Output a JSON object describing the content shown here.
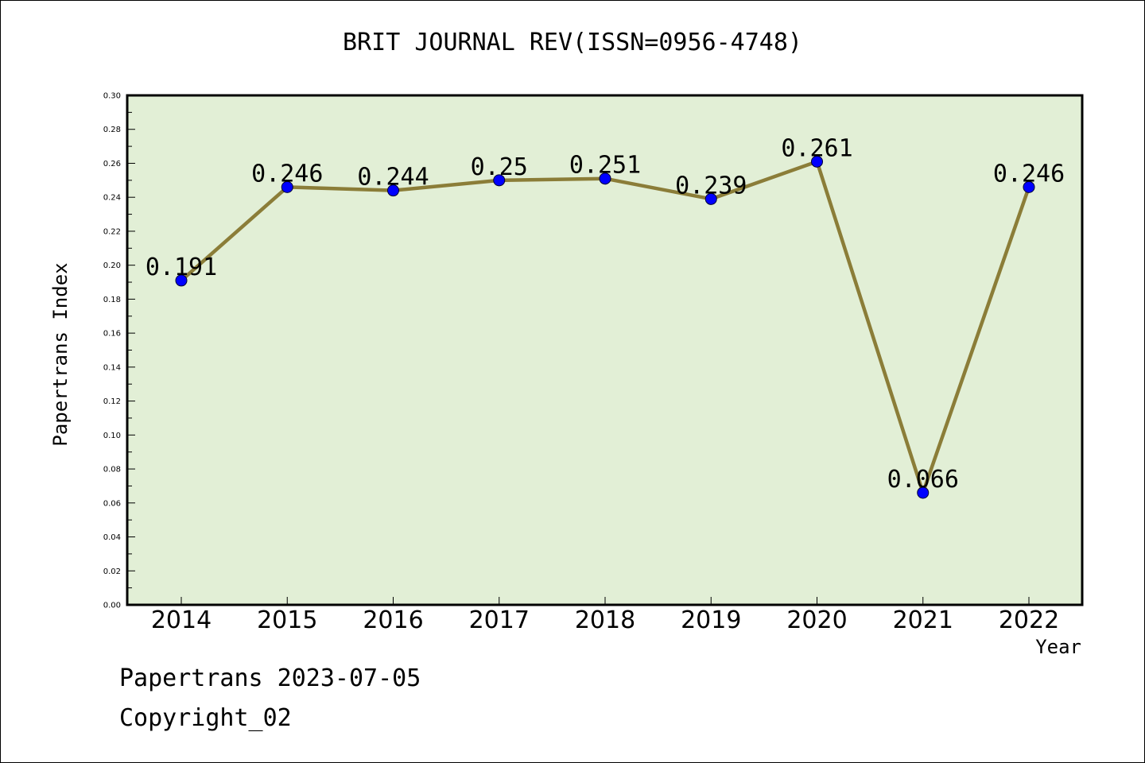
{
  "chart_data": {
    "type": "line",
    "title": "BRIT JOURNAL REV(ISSN=0956-4748)",
    "xlabel": "Year",
    "ylabel": "Papertrans Index",
    "categories": [
      "2014",
      "2015",
      "2016",
      "2017",
      "2018",
      "2019",
      "2020",
      "2021",
      "2022"
    ],
    "series": [
      {
        "values": [
          0.191,
          0.246,
          0.244,
          0.25,
          0.251,
          0.239,
          0.261,
          0.066,
          0.246
        ],
        "data_labels": [
          "0.191",
          "0.246",
          "0.244",
          "0.25",
          "0.251",
          "0.239",
          "0.261",
          "0.066",
          "0.246"
        ]
      }
    ],
    "ylim": [
      0,
      0.3
    ],
    "yticks": [
      "0.00",
      "0.02",
      "0.04",
      "0.06",
      "0.08",
      "0.10",
      "0.12",
      "0.14",
      "0.16",
      "0.18",
      "0.20",
      "0.22",
      "0.24",
      "0.26",
      "0.28",
      "0.30"
    ],
    "grid": false,
    "legend": "none",
    "colors": {
      "plot_background": "#e2efd6",
      "line": "#8b7d38",
      "marker": "#0000ff"
    }
  },
  "footer": {
    "date_text": "Papertrans 2023-07-05",
    "copyright_text": "Copyright_02"
  }
}
